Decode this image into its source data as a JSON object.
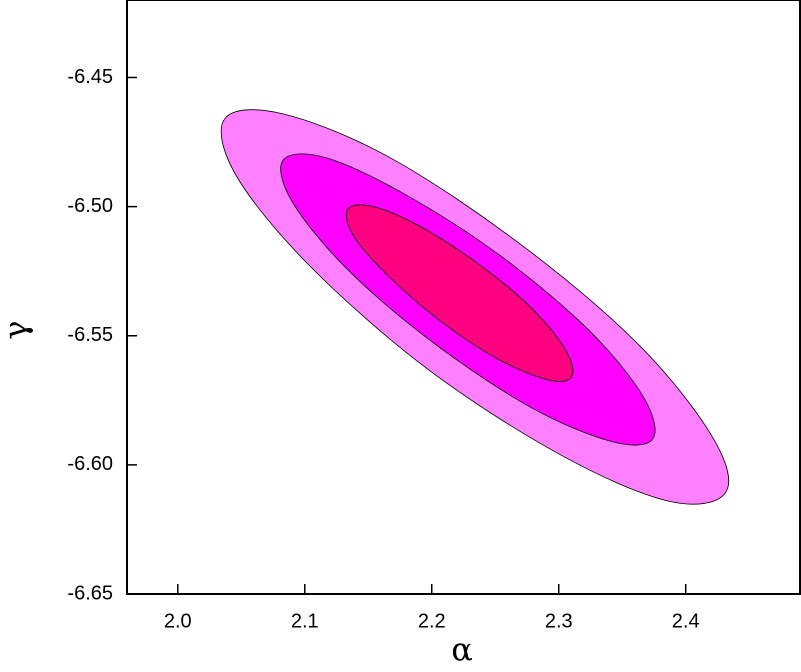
{
  "chart_data": {
    "type": "contour",
    "x_label": "α",
    "y_label": "γ",
    "xlim": [
      1.96,
      2.49
    ],
    "xticks": [
      {
        "value": 2,
        "label": "2.0"
      },
      2.1,
      2.2,
      2.3,
      2.4
    ],
    "ylim": [
      -6.65,
      -6.42
    ],
    "yticks": [
      {
        "value": -6.65,
        "label": "-6.65"
      },
      {
        "value": -6.6,
        "label": "-6.60"
      },
      -6.55,
      {
        "value": -6.5,
        "label": "-6.50"
      },
      -6.45
    ],
    "series": [
      {
        "color": "#ff80ff",
        "x": [
          2.431,
          2.386,
          2.301,
          2.197,
          2.104,
          2.046,
          2.037,
          2.082,
          2.167,
          2.271,
          2.364,
          2.422
        ],
        "values": [
          -6.611,
          -6.614,
          -6.596,
          -6.563,
          -6.523,
          -6.488,
          -6.466,
          -6.464,
          -6.481,
          -6.515,
          -6.554,
          -6.59
        ]
      },
      {
        "color": "#ff00ff",
        "x": [
          2.374,
          2.342,
          2.279,
          2.202,
          2.133,
          2.09,
          2.083,
          2.116,
          2.178,
          2.254,
          2.324,
          2.367
        ],
        "values": [
          -6.59,
          -6.591,
          -6.578,
          -6.553,
          -6.524,
          -6.498,
          -6.482,
          -6.481,
          -6.495,
          -6.519,
          -6.548,
          -6.574
        ]
      },
      {
        "color": "#ff0080",
        "x": [
          2.31,
          2.291,
          2.252,
          2.206,
          2.164,
          2.138,
          2.134,
          2.154,
          2.192,
          2.239,
          2.28,
          2.306
        ],
        "values": [
          -6.566,
          -6.567,
          -6.559,
          -6.544,
          -6.526,
          -6.511,
          -6.501,
          -6.5,
          -6.508,
          -6.523,
          -6.54,
          -6.556
        ]
      }
    ]
  }
}
